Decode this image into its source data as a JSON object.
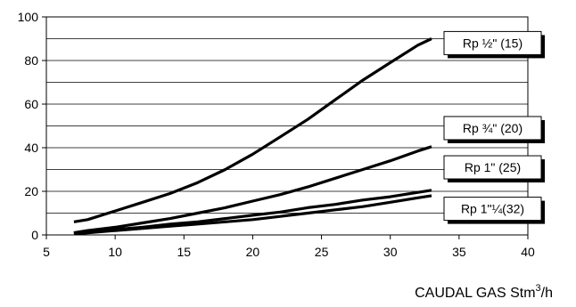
{
  "chart_data": {
    "type": "line",
    "title": "",
    "xlabel": "CAUDAL GAS Stm",
    "xlabel_sup": "3",
    "xlabel_tail": "/h",
    "ylabel": "",
    "xlim": [
      5,
      40
    ],
    "ylim": [
      0,
      100
    ],
    "x_ticks": [
      5,
      10,
      15,
      20,
      25,
      30,
      35,
      40
    ],
    "y_ticks": [
      0,
      20,
      40,
      60,
      80,
      100
    ],
    "grid": "horizontal",
    "legend": "right",
    "series": [
      {
        "name": "Rp ½\" (15)",
        "label_y": 88,
        "x": [
          7,
          8,
          10,
          12,
          14,
          16,
          18,
          20,
          22,
          24,
          26,
          28,
          30,
          32,
          33
        ],
        "values": [
          6,
          7,
          11,
          15,
          19,
          24,
          30,
          37,
          45,
          53,
          62,
          71,
          79,
          87,
          90
        ]
      },
      {
        "name": "Rp ¾\" (20)",
        "label_y": 49,
        "x": [
          7,
          8,
          10,
          12,
          14,
          16,
          18,
          20,
          22,
          24,
          26,
          28,
          30,
          32,
          33
        ],
        "values": [
          1,
          2,
          3.5,
          5.5,
          7.5,
          10,
          12.5,
          15.5,
          18.5,
          22,
          26,
          30,
          34,
          38.5,
          40.5
        ]
      },
      {
        "name": "Rp 1\" (25)",
        "label_y": 31,
        "x": [
          7,
          8,
          10,
          12,
          14,
          16,
          18,
          20,
          22,
          24,
          26,
          28,
          30,
          32,
          33
        ],
        "values": [
          1,
          1.5,
          2.5,
          3.5,
          5,
          6,
          7.5,
          9,
          10.5,
          12.5,
          14,
          16,
          17.5,
          19.5,
          20.5
        ]
      },
      {
        "name": "Rp 1\"¼(32)",
        "label_y": 12,
        "x": [
          7,
          8,
          10,
          12,
          14,
          16,
          18,
          20,
          22,
          24,
          26,
          28,
          30,
          32,
          33
        ],
        "values": [
          0.5,
          1,
          2,
          3,
          4,
          5,
          6,
          7,
          8.5,
          10,
          11.5,
          13,
          15,
          17,
          18
        ]
      }
    ]
  }
}
